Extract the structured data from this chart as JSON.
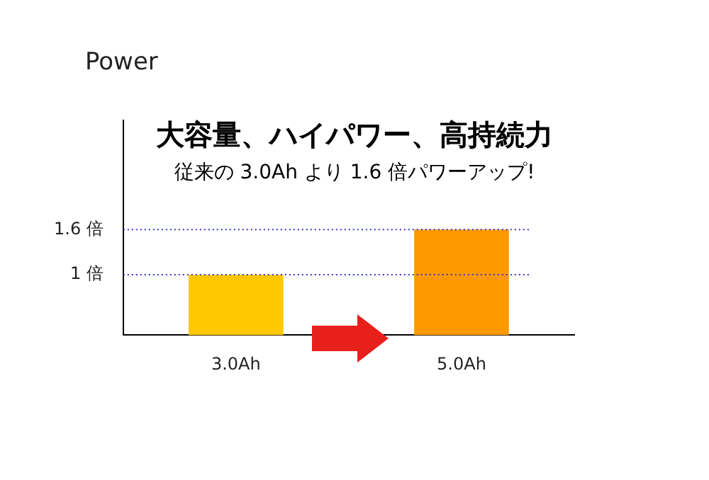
{
  "chart_data": {
    "type": "bar",
    "title": "大容量、ハイパワー、高持続力",
    "subtitle": "従来の 3.0Ah より 1.6 倍パワーアップ!",
    "ylabel": "Power",
    "categories": [
      "3.0Ah",
      "5.0Ah"
    ],
    "values": [
      1,
      1.6
    ],
    "colors": [
      "#ffc800",
      "#ff9900"
    ],
    "ylim": [
      0.2,
      3.05
    ],
    "yticks": [
      {
        "value": 1,
        "label": "1 倍"
      },
      {
        "value": 1.6,
        "label": "1.6 倍"
      }
    ],
    "ref_lines": [
      {
        "axis": "y",
        "value": 1,
        "color": "#3333cc",
        "line_style": "dotted"
      },
      {
        "axis": "y",
        "value": 1.6,
        "color": "#3333cc",
        "line_style": "dotted"
      }
    ],
    "grid": false,
    "legend": false
  }
}
